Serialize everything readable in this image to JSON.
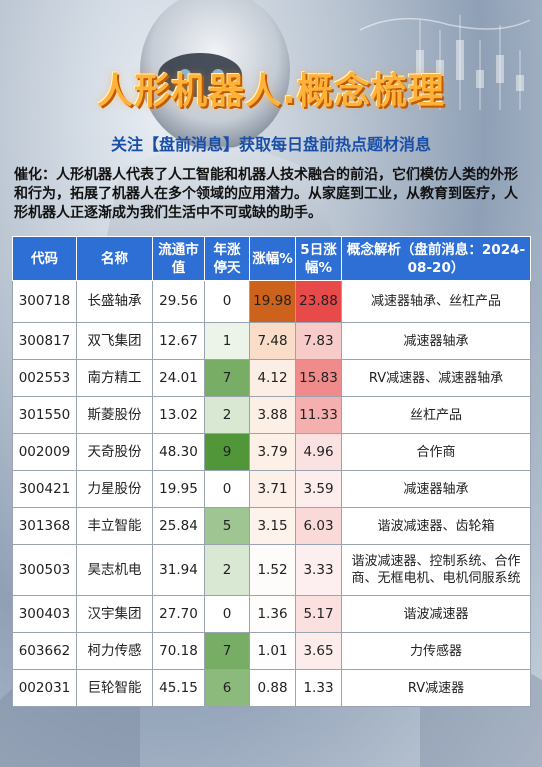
{
  "header": {
    "title": "人形机器人.概念梳理",
    "subtitle": "关注【盘前消息】获取每日盘前热点题材消息",
    "intro": "催化：人形机器人代表了人工智能和机器人技术融合的前沿，它们模仿人类的外形和行为，拓展了机器人在多个领域的应用潜力。从家庭到工业，从教育到医疗，人形机器人正逐渐成为我们生活中不可或缺的助手。"
  },
  "table": {
    "headers": [
      "代码",
      "名称",
      "流通市值",
      "年涨停天",
      "涨幅%",
      "5日涨幅%",
      "概念解析（盘前消息：2024-08-20）"
    ],
    "rows": [
      {
        "code": "300718",
        "name": "长盛轴承",
        "cap": "29.56",
        "limit_days": "0",
        "chg": "19.98",
        "chg5": "23.88",
        "desc": "减速器轴承、丝杠产品"
      },
      {
        "code": "300817",
        "name": "双飞集团",
        "cap": "12.67",
        "limit_days": "1",
        "chg": "7.48",
        "chg5": "7.83",
        "desc": "减速器轴承"
      },
      {
        "code": "002553",
        "name": "南方精工",
        "cap": "24.01",
        "limit_days": "7",
        "chg": "4.12",
        "chg5": "15.83",
        "desc": "RV减速器、减速器轴承"
      },
      {
        "code": "301550",
        "name": "斯菱股份",
        "cap": "13.02",
        "limit_days": "2",
        "chg": "3.88",
        "chg5": "11.33",
        "desc": "丝杠产品"
      },
      {
        "code": "002009",
        "name": "天奇股份",
        "cap": "48.30",
        "limit_days": "9",
        "chg": "3.79",
        "chg5": "4.96",
        "desc": "合作商"
      },
      {
        "code": "300421",
        "name": "力星股份",
        "cap": "19.95",
        "limit_days": "0",
        "chg": "3.71",
        "chg5": "3.59",
        "desc": "减速器轴承"
      },
      {
        "code": "301368",
        "name": "丰立智能",
        "cap": "25.84",
        "limit_days": "5",
        "chg": "3.15",
        "chg5": "6.03",
        "desc": "谐波减速器、齿轮箱"
      },
      {
        "code": "300503",
        "name": "昊志机电",
        "cap": "31.94",
        "limit_days": "2",
        "chg": "1.52",
        "chg5": "3.33",
        "desc": "谐波减速器、控制系统、合作商、无框电机、电机伺服系统"
      },
      {
        "code": "300403",
        "name": "汉宇集团",
        "cap": "27.70",
        "limit_days": "0",
        "chg": "1.36",
        "chg5": "5.17",
        "desc": "谐波减速器"
      },
      {
        "code": "603662",
        "name": "柯力传感",
        "cap": "70.18",
        "limit_days": "7",
        "chg": "1.01",
        "chg5": "3.65",
        "desc": "力传感器"
      },
      {
        "code": "002031",
        "name": "巨轮智能",
        "cap": "45.15",
        "limit_days": "6",
        "chg": "0.88",
        "chg5": "1.33",
        "desc": "RV减速器"
      }
    ]
  },
  "colors": {
    "header_bg": "#2e6fd6",
    "title": "#ffb23a",
    "subtitle": "#1a4fa8"
  }
}
